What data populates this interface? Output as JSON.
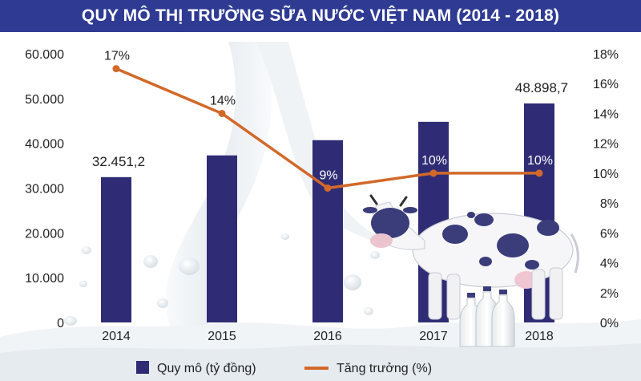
{
  "chart_data": {
    "type": "bar",
    "title": "QUY MÔ THỊ TRƯỜNG SỮA NƯỚC VIỆT NAM (2014 - 2018)",
    "categories": [
      "2014",
      "2015",
      "2016",
      "2017",
      "2018"
    ],
    "series": [
      {
        "name": "Quy mô (tỷ đồng)",
        "type": "bar",
        "axis": "left",
        "values": [
          32451.2,
          37300,
          40700,
          44800,
          48898.7
        ],
        "data_labels": [
          "32.451,2",
          "",
          "",
          "",
          "48.898,7"
        ]
      },
      {
        "name": "Tăng trưởng (%)",
        "type": "line",
        "axis": "right",
        "values": [
          17,
          14,
          9,
          10,
          10
        ],
        "data_labels": [
          "17%",
          "14%",
          "9%",
          "10%",
          "10%"
        ]
      }
    ],
    "left_axis": {
      "ylim": [
        0,
        60000
      ],
      "ticks": [
        0,
        10000,
        20000,
        30000,
        40000,
        50000,
        60000
      ],
      "tick_labels": [
        "0",
        "10.000",
        "20.000",
        "30.000",
        "40.000",
        "50.000",
        "60.000"
      ]
    },
    "right_axis": {
      "ylim": [
        0,
        18
      ],
      "ticks": [
        0,
        2,
        4,
        6,
        8,
        10,
        12,
        14,
        16,
        18
      ],
      "tick_labels": [
        "0%",
        "2%",
        "4%",
        "6%",
        "8%",
        "10%",
        "12%",
        "14%",
        "16%",
        "18%"
      ]
    },
    "grid": false,
    "legend_position": "bottom",
    "legend": [
      {
        "label": "Quy mô (tỷ đồng)",
        "marker": "square"
      },
      {
        "label": "Tăng trưởng (%)",
        "marker": "line"
      }
    ],
    "colors": {
      "bar": "#2f2c75",
      "line": "#d2692a",
      "title_bg": "#2f3b93",
      "title_text": "#ffffff",
      "axis_text": "#222222"
    }
  }
}
